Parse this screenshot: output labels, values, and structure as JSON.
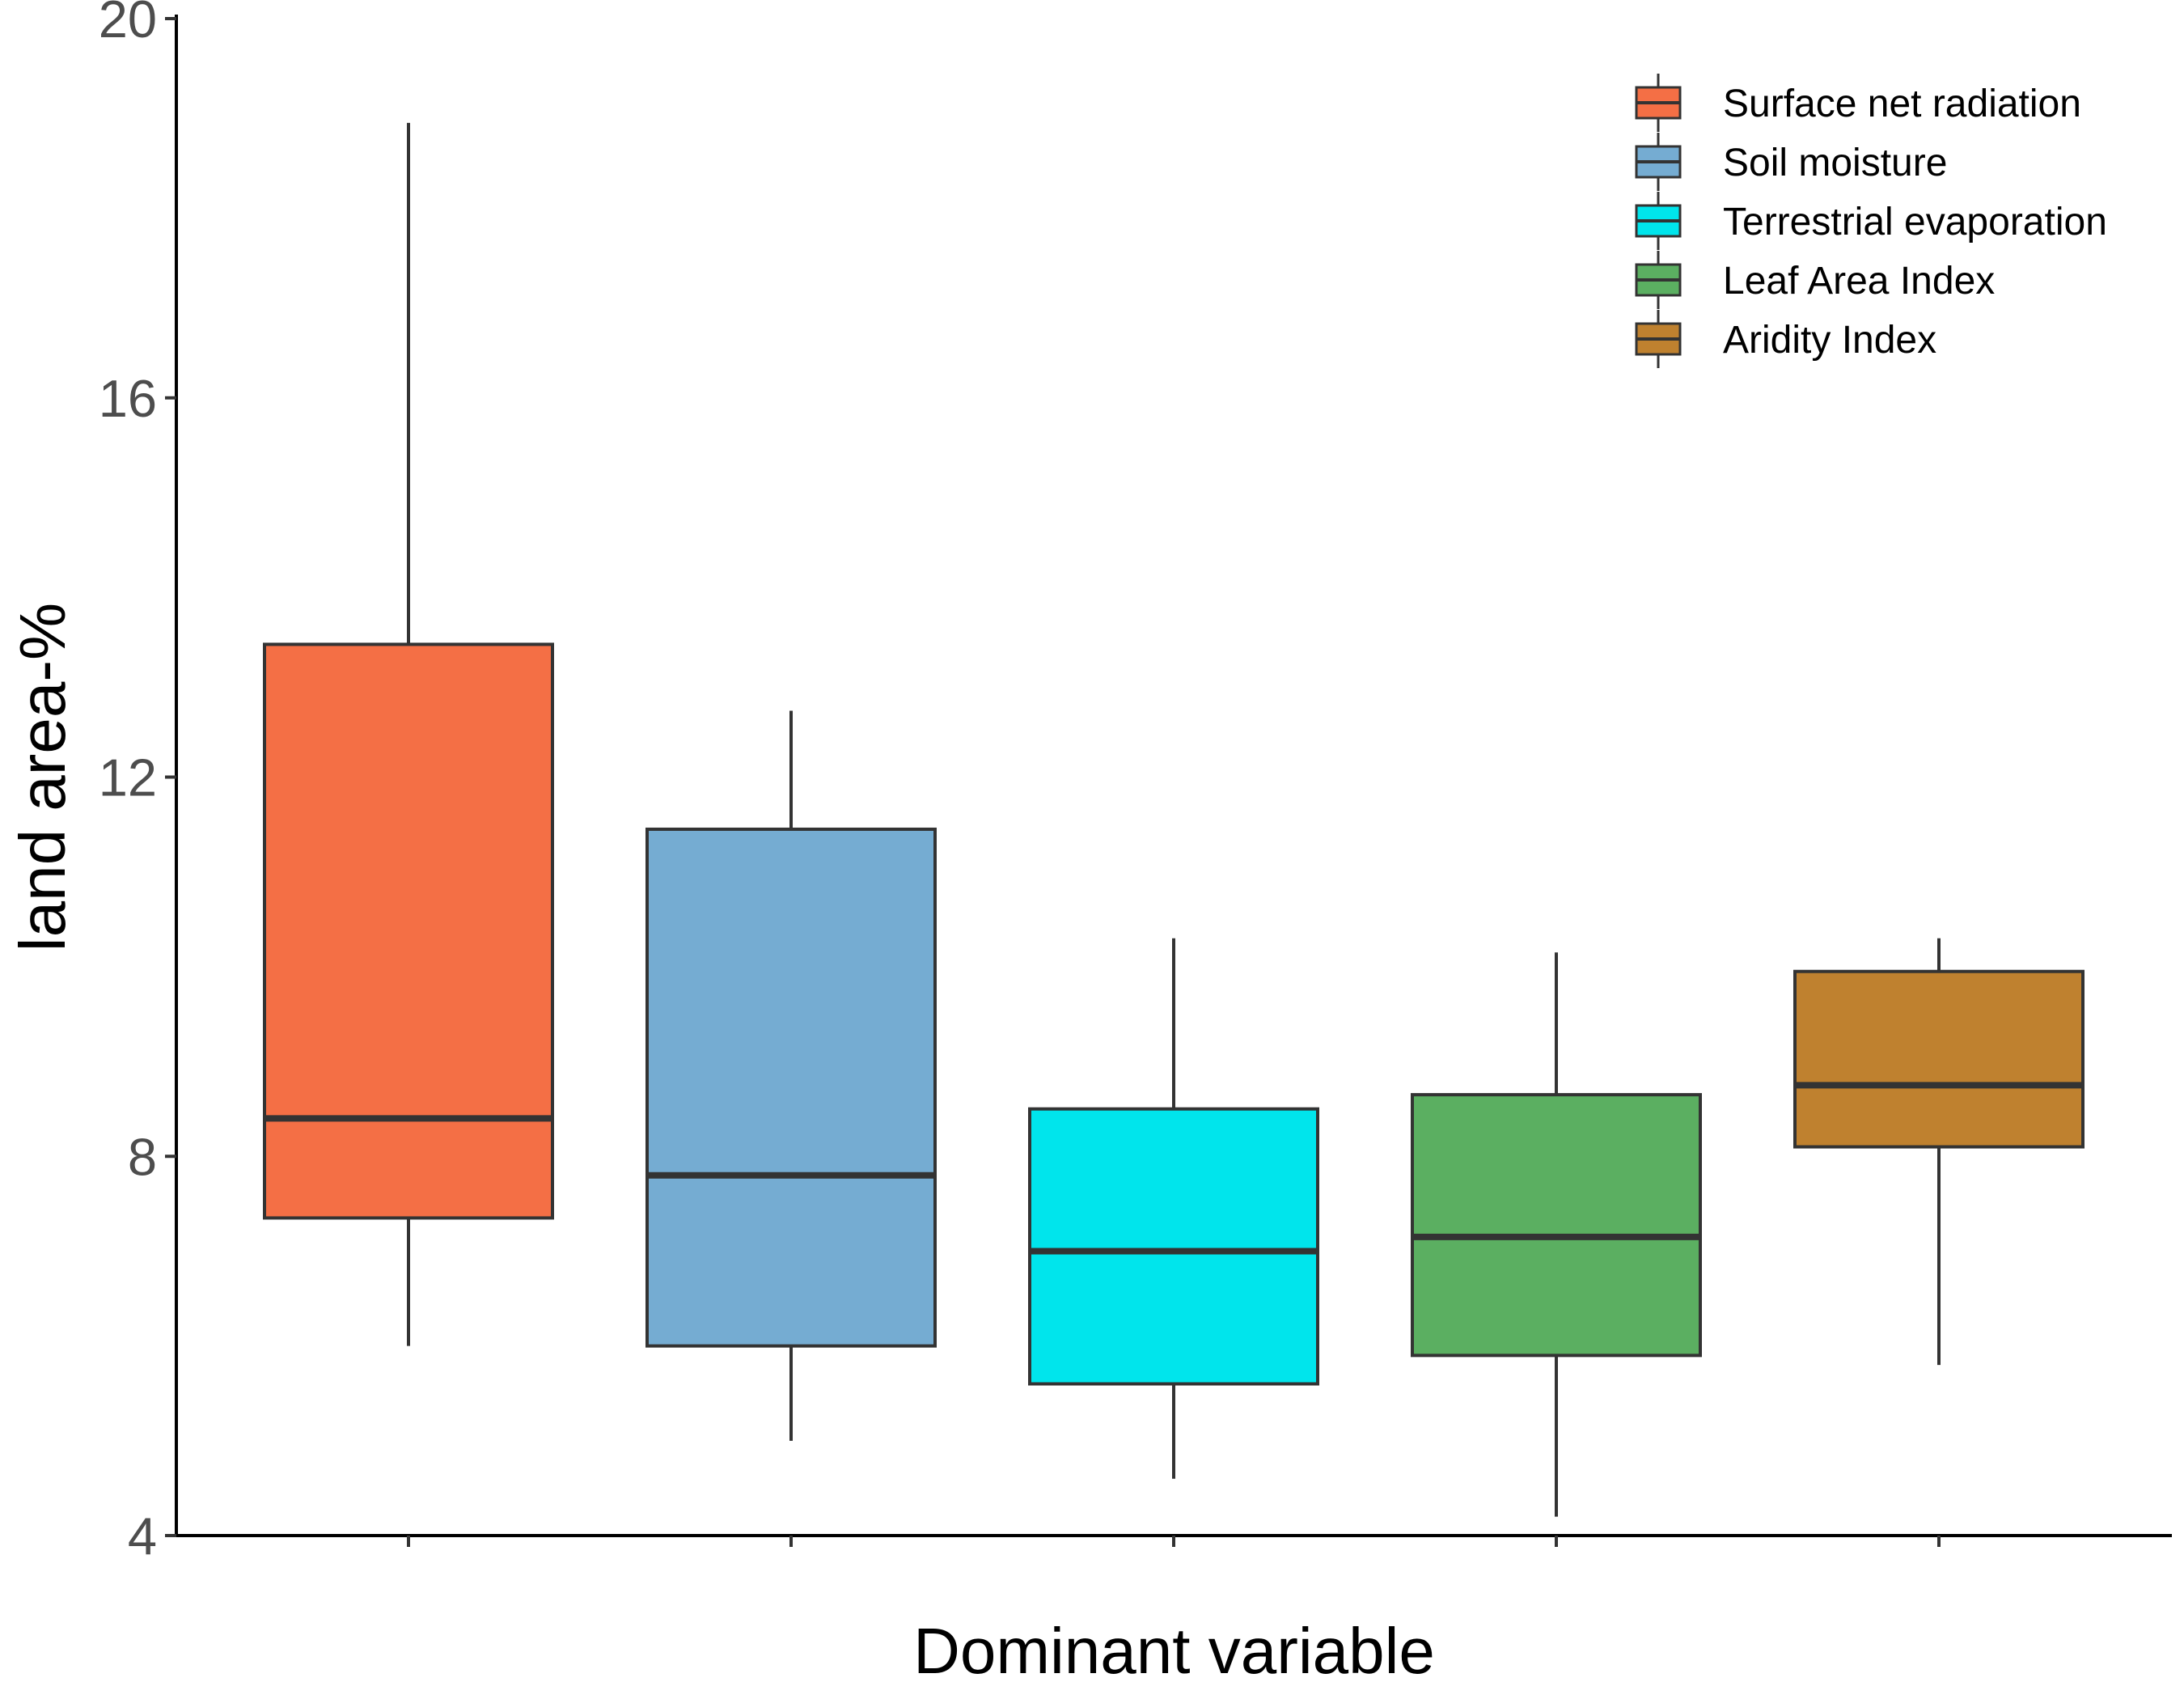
{
  "chart_data": {
    "type": "boxplot",
    "xlabel": "Dominant variable",
    "ylabel": "land area-%",
    "ylim": [
      4,
      20
    ],
    "yticks": [
      4,
      8,
      12,
      16,
      20
    ],
    "grid": false,
    "legend_position": "top-right",
    "series": [
      {
        "name": "Surface net radiation",
        "color": "#F46F45",
        "min": 6.0,
        "q1": 7.35,
        "median": 8.4,
        "q3": 13.4,
        "max": 18.9
      },
      {
        "name": "Soil moisture",
        "color": "#75ACD2",
        "min": 5.0,
        "q1": 6.0,
        "median": 7.8,
        "q3": 11.45,
        "max": 12.7
      },
      {
        "name": "Terrestrial evaporation",
        "color": "#00E5EC",
        "min": 4.6,
        "q1": 5.6,
        "median": 7.0,
        "q3": 8.5,
        "max": 10.3
      },
      {
        "name": "Leaf Area Index",
        "color": "#5BAF61",
        "min": 4.2,
        "q1": 5.9,
        "median": 7.15,
        "q3": 8.65,
        "max": 10.15
      },
      {
        "name": "Aridity Index",
        "color": "#BF812F",
        "min": 5.8,
        "q1": 8.1,
        "median": 8.75,
        "q3": 9.95,
        "max": 10.3
      }
    ]
  }
}
